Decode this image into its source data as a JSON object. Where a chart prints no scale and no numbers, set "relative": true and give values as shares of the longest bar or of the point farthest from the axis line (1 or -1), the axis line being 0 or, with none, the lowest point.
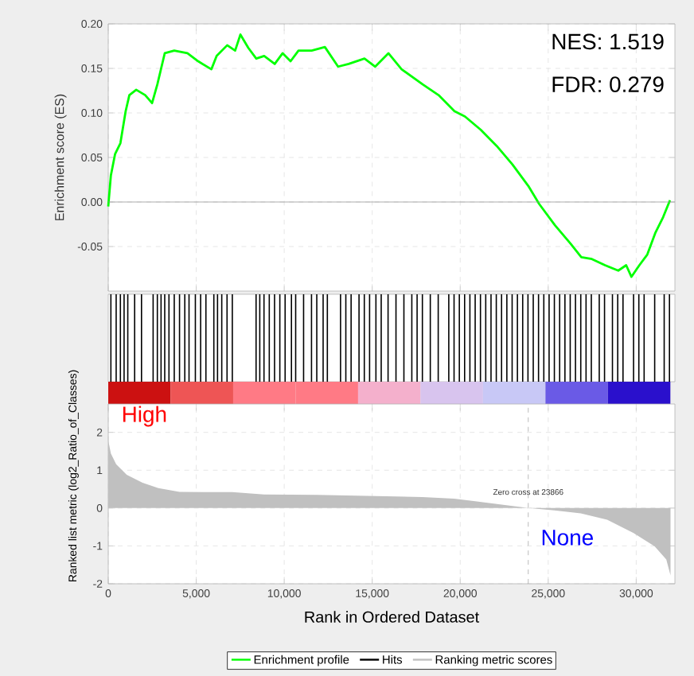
{
  "chart_data": [
    {
      "type": "line",
      "ylabel": "Enrichment score (ES)",
      "xlim": [
        0,
        32200
      ],
      "ylim": [
        -0.1,
        0.2
      ],
      "xticks": [
        0,
        5000,
        10000,
        15000,
        20000,
        25000,
        30000
      ],
      "yticks": [
        {
          "value": -0.05,
          "label": "-0.05"
        },
        {
          "value": 0,
          "label": "0.00"
        },
        {
          "value": 0.05,
          "label": "0.05"
        },
        {
          "value": 0.1,
          "label": "0.10"
        },
        {
          "value": 0.15,
          "label": "0.15"
        },
        {
          "value": 0.2,
          "label": "0.20"
        }
      ],
      "tick_labels": "y",
      "grid": true,
      "ref_lines": [
        {
          "axis": "y",
          "value": 0,
          "color": "#999999"
        }
      ],
      "annotations": [
        "NES: 1.519",
        "FDR: 0.279"
      ],
      "series": [
        {
          "name": "Enrichment profile",
          "color": "#00ff00",
          "x": [
            0,
            150,
            390,
            690,
            990,
            1200,
            1590,
            2100,
            2490,
            2790,
            3210,
            3750,
            4500,
            5110,
            5860,
            6160,
            6760,
            7210,
            7510,
            7960,
            8410,
            8860,
            9460,
            9910,
            10360,
            10810,
            11560,
            12310,
            13060,
            13660,
            14560,
            15170,
            15920,
            16670,
            17870,
            18770,
            19670,
            20270,
            21170,
            22070,
            22970,
            23870,
            24480,
            25380,
            26280,
            26880,
            27480,
            28230,
            28980,
            29430,
            29730,
            30180,
            30630,
            31080,
            31530,
            31920
          ],
          "values": [
            -0.005,
            0.03,
            0.054,
            0.066,
            0.102,
            0.12,
            0.126,
            0.12,
            0.111,
            0.132,
            0.167,
            0.17,
            0.167,
            0.158,
            0.149,
            0.164,
            0.176,
            0.17,
            0.188,
            0.173,
            0.161,
            0.164,
            0.155,
            0.167,
            0.158,
            0.17,
            0.17,
            0.174,
            0.152,
            0.155,
            0.161,
            0.152,
            0.167,
            0.149,
            0.132,
            0.12,
            0.102,
            0.096,
            0.081,
            0.063,
            0.042,
            0.018,
            -0.002,
            -0.026,
            -0.047,
            -0.062,
            -0.064,
            -0.071,
            -0.077,
            -0.071,
            -0.084,
            -0.071,
            -0.059,
            -0.035,
            -0.017,
            0.002
          ]
        }
      ]
    },
    {
      "type": "bar",
      "relative": true,
      "xlim": [
        0,
        32200
      ],
      "tick_labels": false,
      "series": [
        {
          "name": "Hits",
          "color": "#000000",
          "x": [
            150,
            450,
            690,
            900,
            1110,
            1500,
            1890,
            2550,
            2790,
            3000,
            3210,
            3450,
            3750,
            4050,
            4350,
            4590,
            4950,
            5250,
            5550,
            6000,
            6210,
            6450,
            6750,
            7050,
            8400,
            8610,
            8850,
            9150,
            9450,
            9750,
            10050,
            10410,
            10650,
            11100,
            11550,
            11850,
            12210,
            12450,
            13200,
            13500,
            13800,
            14250,
            14550,
            14850,
            15210,
            15510,
            15900,
            16350,
            16800,
            17250,
            17550,
            17850,
            18300,
            18750,
            19350,
            19650,
            19950,
            20250,
            20550,
            20850,
            21150,
            21450,
            21750,
            22050,
            22350,
            22650,
            22950,
            23250,
            23550,
            23850,
            24150,
            24450,
            24750,
            25050,
            25350,
            25650,
            25950,
            26250,
            26550,
            26850,
            27150,
            27450,
            27900,
            28200,
            28650,
            28950,
            29250,
            29850,
            30150,
            30450,
            31050,
            31590,
            31890
          ],
          "values": [
            1,
            1,
            1,
            1,
            1,
            1,
            1,
            1,
            1,
            1,
            1,
            1,
            1,
            1,
            1,
            1,
            1,
            1,
            1,
            1,
            1,
            1,
            1,
            1,
            1,
            1,
            1,
            1,
            1,
            1,
            1,
            1,
            1,
            1,
            1,
            1,
            1,
            1,
            1,
            1,
            1,
            1,
            1,
            1,
            1,
            1,
            1,
            1,
            1,
            1,
            1,
            1,
            1,
            1,
            1,
            1,
            1,
            1,
            1,
            1,
            1,
            1,
            1,
            1,
            1,
            1,
            1,
            1,
            1,
            1,
            1,
            1,
            1,
            1,
            1,
            1,
            1,
            1,
            1,
            1,
            1,
            1,
            1,
            1,
            1,
            1,
            1,
            1,
            1,
            1,
            1,
            1,
            1
          ]
        }
      ]
    },
    {
      "type": "area",
      "xlabel": "Rank in Ordered Dataset",
      "ylabel": "Ranked list metric (log2_Ratio_of_Classes)",
      "xlim": [
        0,
        32200
      ],
      "ylim": [
        -2,
        2.75
      ],
      "xticks": [
        0,
        {
          "value": 5000,
          "label": "5,000"
        },
        {
          "value": 10000,
          "label": "10,000"
        },
        {
          "value": 15000,
          "label": "15,000"
        },
        {
          "value": 20000,
          "label": "20,000"
        },
        {
          "value": 25000,
          "label": "25,000"
        },
        {
          "value": 30000,
          "label": "30,000"
        }
      ],
      "yticks": [
        -2,
        -1,
        0,
        1,
        2
      ],
      "grid": true,
      "legend": "bottom",
      "ref_lines": [
        {
          "axis": "x",
          "value": 23866,
          "label": "Zero cross at 23866",
          "color": "#aaaaaa",
          "line_style": "dashed"
        }
      ],
      "annotations": [
        "High",
        "None"
      ],
      "series": [
        {
          "name": "Ranking metric scores",
          "color": "#c0c0c0",
          "x": [
            0,
            150,
            450,
            1050,
            1950,
            2850,
            4050,
            5850,
            7050,
            8850,
            11850,
            14850,
            17850,
            19650,
            20850,
            23866,
            25350,
            26850,
            28350,
            29850,
            31050,
            31710,
            31950
          ],
          "values": [
            1.79,
            1.44,
            1.16,
            0.88,
            0.67,
            0.53,
            0.43,
            0.42,
            0.42,
            0.36,
            0.35,
            0.32,
            0.29,
            0.25,
            0.18,
            0,
            -0.06,
            -0.14,
            -0.31,
            -0.66,
            -1.01,
            -1.36,
            -1.78
          ]
        }
      ]
    }
  ]
}
